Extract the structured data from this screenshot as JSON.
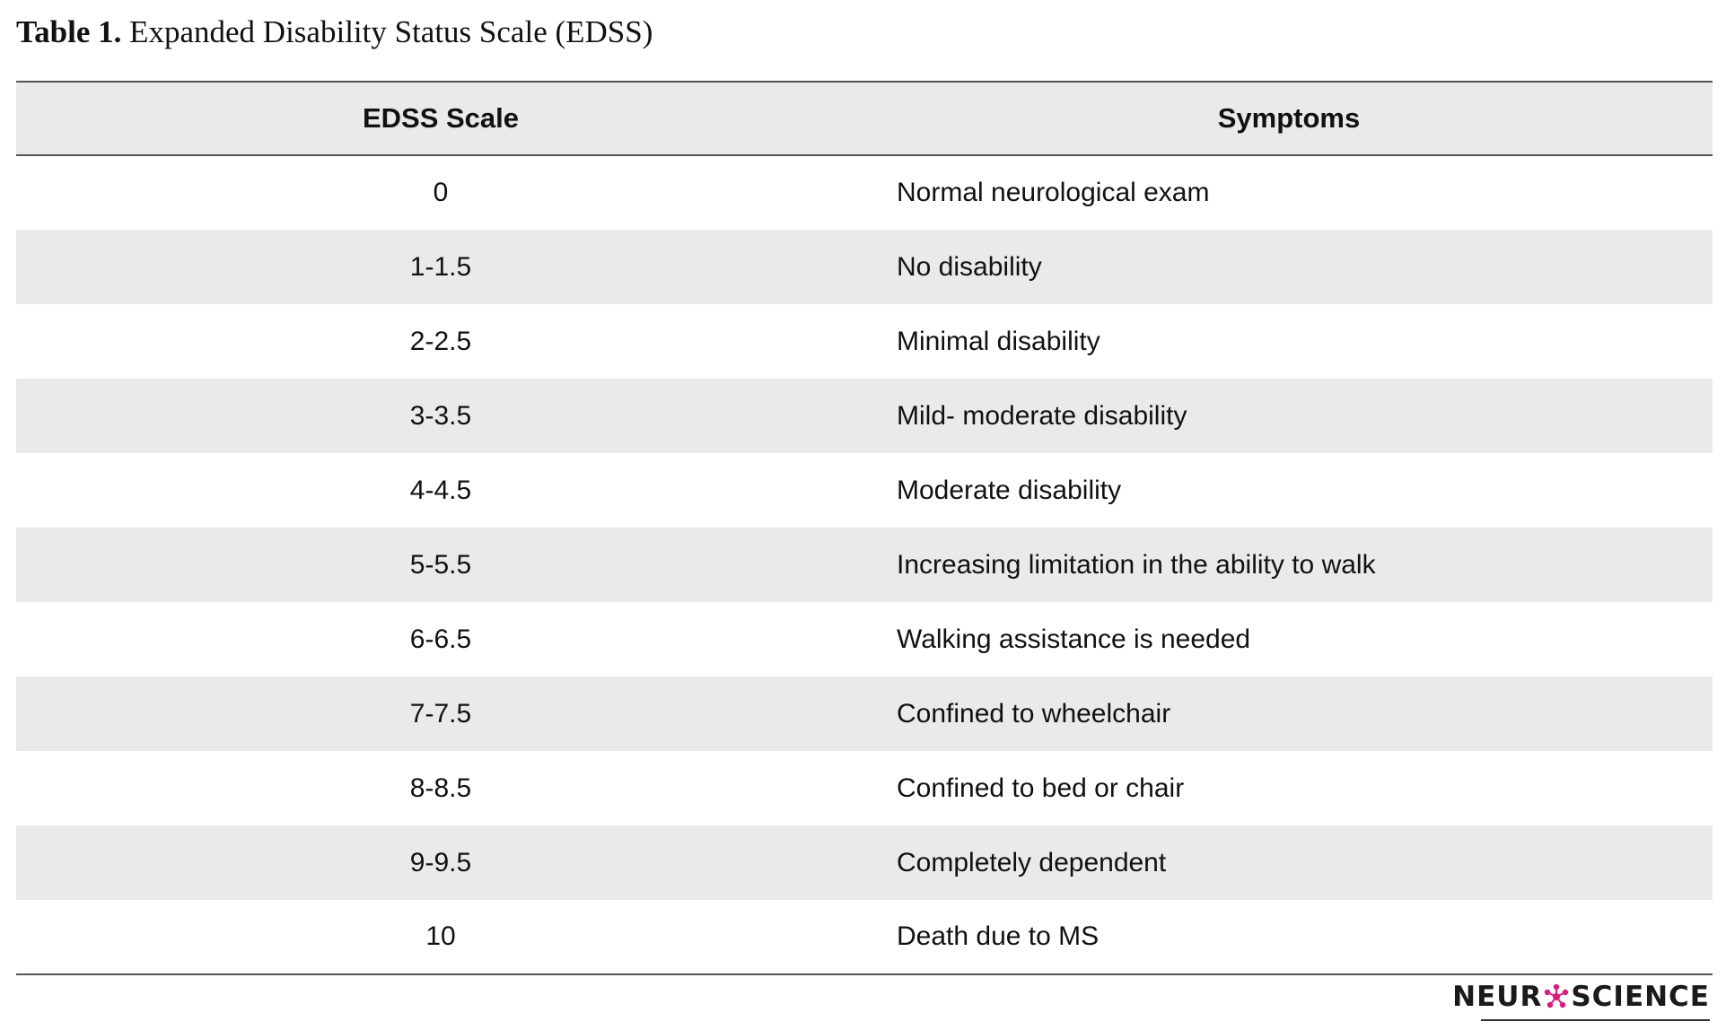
{
  "caption": {
    "label": "Table 1.",
    "text": "Expanded Disability Status Scale (EDSS)"
  },
  "table": {
    "headers": [
      "EDSS Scale",
      "Symptoms"
    ],
    "rows": [
      [
        "0",
        "Normal neurological exam"
      ],
      [
        "1-1.5",
        "No disability"
      ],
      [
        "2-2.5",
        "Minimal disability"
      ],
      [
        "3-3.5",
        "Mild- moderate disability"
      ],
      [
        "4-4.5",
        "Moderate disability"
      ],
      [
        "5-5.5",
        "Increasing limitation in the ability to walk"
      ],
      [
        "6-6.5",
        "Walking assistance is needed"
      ],
      [
        "7-7.5",
        "Confined to wheelchair"
      ],
      [
        "8-8.5",
        "Confined to bed or chair"
      ],
      [
        "9-9.5",
        "Completely dependent"
      ],
      [
        "10",
        "Death due to MS"
      ]
    ]
  },
  "logo": {
    "text_before": "NEUR",
    "text_after": "SCIENCE",
    "icon": "neuron-o-icon",
    "accent_color": "#e0197d"
  }
}
